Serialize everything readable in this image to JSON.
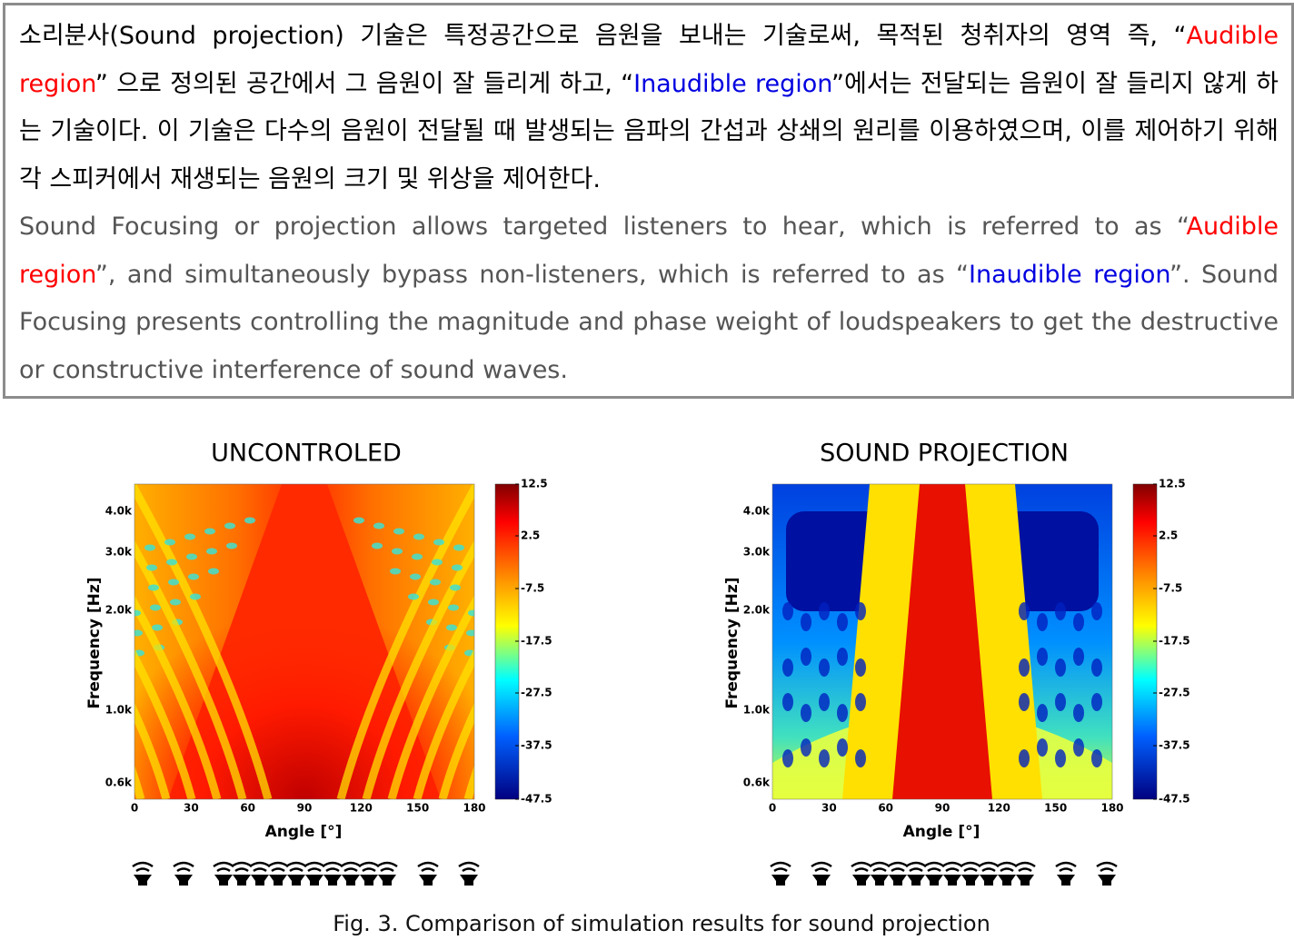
{
  "text_box": {
    "korean": [
      "소리분사(Sound projection) 기술은 특정공간으로 음원을 보내는 기술로써, 목적된 청취자의 영역 즉, “",
      "Audible region",
      "” 으로 정의된 공간에서 그 음원이 잘 들리게 하고, “",
      "Inaudible region",
      "”에서는 전달되는 음원이 잘 들리지 않게 하는 기술이다. 이 기술은 다수의 음원이 전달될 때 발생되는 음파의 간섭과 상쇄의 원리를 이용하였으며, 이를 제어하기 위해 각 스피커에서 재생되는 음원의 크기 및 위상을 제어한다."
    ],
    "english": [
      "Sound Focusing or projection allows targeted listeners to hear, which is referred to as “",
      "Audible region",
      "”, and simultaneously bypass non-listeners, which is referred to as “",
      "Inaudible region",
      "”. Sound Focusing presents controlling the magnitude and phase weight of loudspeakers to get the destructive or constructive interference of sound waves."
    ]
  },
  "figures": [
    {
      "title": "UNCONTROLED",
      "y_label": "Frequency [Hz]",
      "x_label": "Angle [°]",
      "x_ticks": [
        0,
        30,
        60,
        90,
        120,
        150,
        180
      ],
      "y_ticks": [
        "4.0k",
        "3.0k",
        "2.0k",
        "1.0k",
        "0.6k"
      ],
      "colorbar_ticks": [
        12.5,
        2.5,
        -7.5,
        -17.5,
        -27.5,
        -37.5,
        -47.5
      ]
    },
    {
      "title": "SOUND PROJECTION",
      "y_label": "Frequency [Hz]",
      "x_label": "Angle [°]",
      "x_ticks": [
        0,
        30,
        60,
        90,
        120,
        150,
        180
      ],
      "y_ticks": [
        "4.0k",
        "3.0k",
        "2.0k",
        "1.0k",
        "0.6k"
      ],
      "colorbar_ticks": [
        12.5,
        2.5,
        -7.5,
        -17.5,
        -27.5,
        -37.5,
        -47.5
      ]
    }
  ],
  "caption": "Fig. 3.  Comparison of simulation results for sound projection"
}
